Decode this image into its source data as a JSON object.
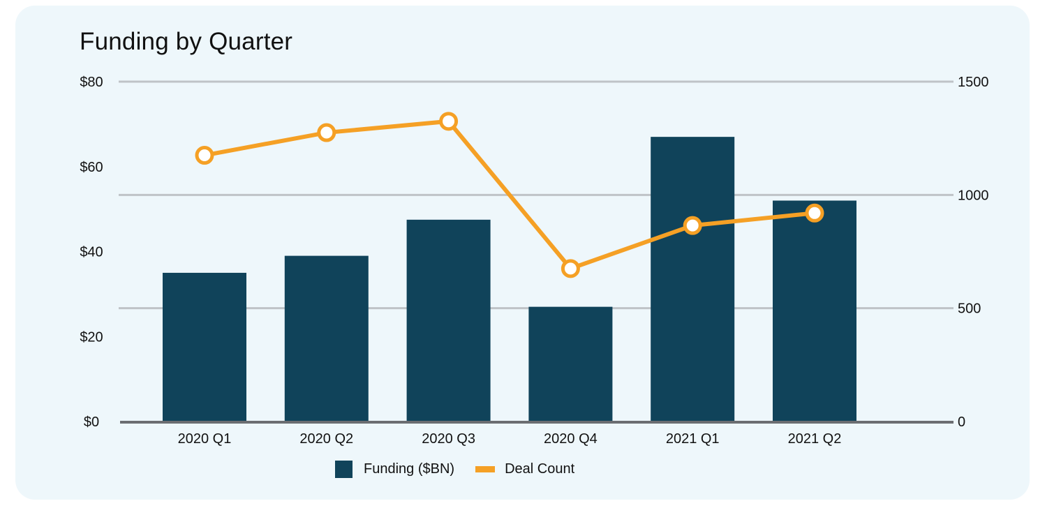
{
  "chart_data": {
    "type": "bar",
    "title": "Funding by Quarter",
    "categories": [
      "2020 Q1",
      "2020 Q2",
      "2020 Q3",
      "2020 Q4",
      "2021 Q1",
      "2021 Q2"
    ],
    "series": [
      {
        "name": "Funding ($BN)",
        "type": "bar",
        "axis": "left",
        "color": "#10435a",
        "values": [
          35,
          39,
          47.5,
          27,
          67,
          52
        ]
      },
      {
        "name": "Deal Count",
        "type": "line",
        "axis": "right",
        "color": "#f5a025",
        "values": [
          1175,
          1275,
          1325,
          675,
          865,
          920
        ]
      }
    ],
    "y_left": {
      "range": [
        0,
        80
      ],
      "ticks": [
        0,
        20,
        40,
        60,
        80
      ],
      "tick_labels": [
        "$0",
        "$20",
        "$40",
        "$60",
        "$80"
      ]
    },
    "y_right": {
      "range": [
        0,
        1500
      ],
      "ticks": [
        0,
        500,
        1000,
        1500
      ],
      "tick_labels": [
        "0",
        "500",
        "1000",
        "1500"
      ]
    },
    "gridlines": [
      500,
      1000,
      1500
    ],
    "grid": true,
    "legend_position": "bottom-center",
    "xlabel": "",
    "ylabel": ""
  }
}
